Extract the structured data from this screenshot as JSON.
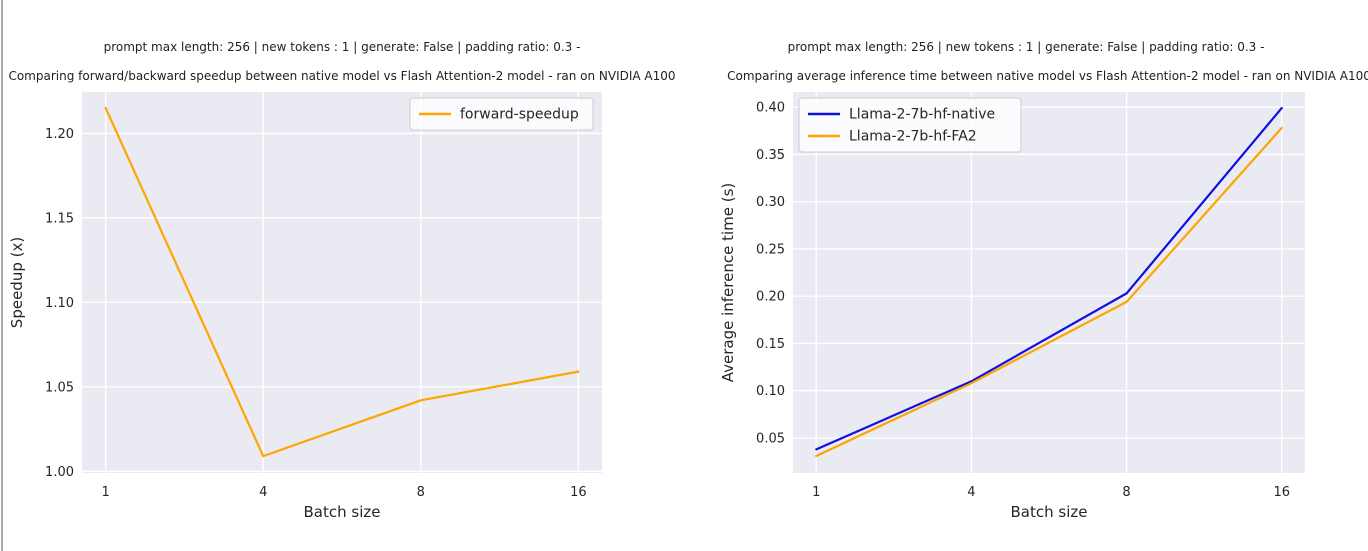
{
  "page": {
    "background": "#ffffff",
    "border_color": "#aaaaae",
    "plot_background": "#eaeaf2",
    "grid_color": "#ffffff",
    "text_color": "#262626",
    "title_color": "#1f1f1f"
  },
  "chart_data": [
    {
      "id": "forward-speedup-chart",
      "type": "line",
      "suptitle": "prompt max length: 256 | new tokens : 1 | generate: False | padding ratio: 0.3 -",
      "title": "Comparing forward/backward speedup between native model vs Flash Attention-2 model - ran on NVIDIA A100",
      "xlabel": "Batch size",
      "ylabel": "Speedup (x)",
      "categories": [
        "1",
        "4",
        "8",
        "16"
      ],
      "x_values": [
        1,
        4,
        8,
        16
      ],
      "yticks": [
        "1.00",
        "1.05",
        "1.10",
        "1.15",
        "1.20"
      ],
      "ytick_values": [
        1.0,
        1.05,
        1.1,
        1.15,
        1.2
      ],
      "ylim": [
        0.999,
        1.2245
      ],
      "grid": true,
      "legend": {
        "position": "upper-right",
        "entries": [
          "forward-speedup"
        ]
      },
      "series": [
        {
          "name": "forward-speedup",
          "color": "#ffa500",
          "values": [
            1.215,
            1.009,
            1.042,
            1.059
          ]
        }
      ]
    },
    {
      "id": "inference-time-chart",
      "type": "line",
      "suptitle": "prompt max length: 256 | new tokens : 1 | generate: False | padding ratio: 0.3 -",
      "title": "Comparing average inference time between native model vs Flash Attention-2 model - ran on NVIDIA A100",
      "xlabel": "Batch size",
      "ylabel": "Average inference time (s)",
      "categories": [
        "1",
        "4",
        "8",
        "16"
      ],
      "x_values": [
        1,
        4,
        8,
        16
      ],
      "yticks": [
        "0.05",
        "0.10",
        "0.15",
        "0.20",
        "0.25",
        "0.30",
        "0.35",
        "0.40"
      ],
      "ytick_values": [
        0.05,
        0.1,
        0.15,
        0.2,
        0.25,
        0.3,
        0.35,
        0.4
      ],
      "ylim": [
        0.013,
        0.416
      ],
      "grid": true,
      "legend": {
        "position": "upper-left",
        "entries": [
          "Llama-2-7b-hf-native",
          "Llama-2-7b-hf-FA2"
        ]
      },
      "series": [
        {
          "name": "Llama-2-7b-hf-native",
          "color": "#0f0fe6",
          "values": [
            0.038,
            0.11,
            0.203,
            0.399
          ]
        },
        {
          "name": "Llama-2-7b-hf-FA2",
          "color": "#ffa500",
          "values": [
            0.031,
            0.108,
            0.194,
            0.378
          ]
        }
      ]
    }
  ]
}
